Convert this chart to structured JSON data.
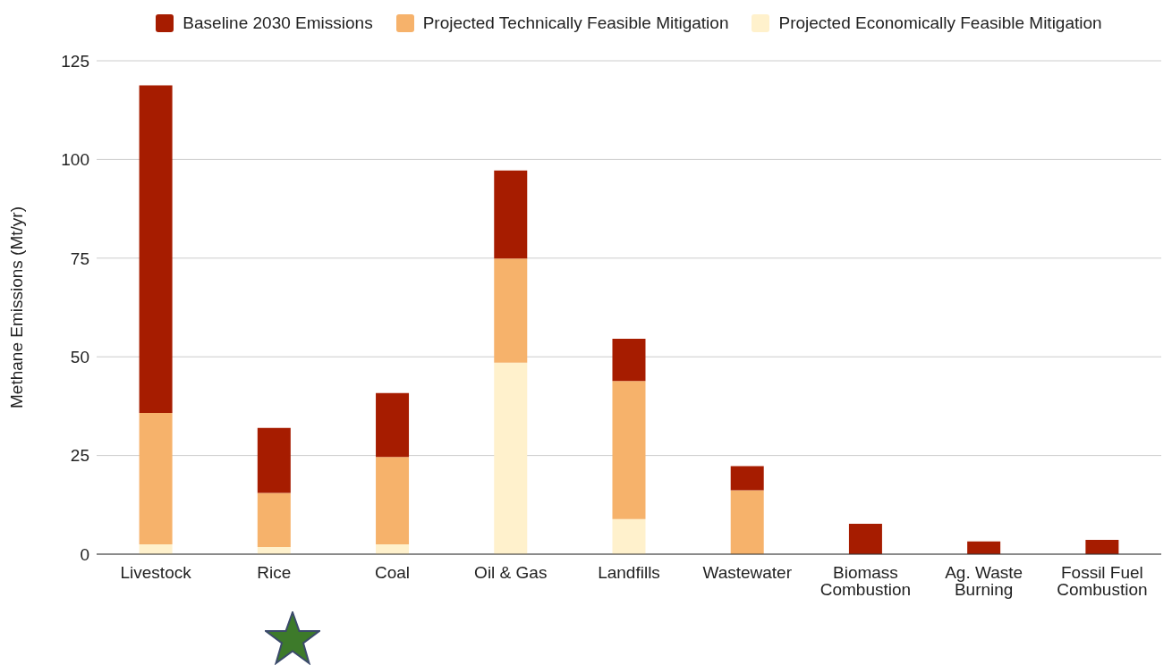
{
  "chart_data": {
    "type": "bar",
    "stacked": true,
    "ylabel": "Methane Emissions (Mt/yr)",
    "categories": [
      "Livestock",
      "Rice",
      "Coal",
      "Oil & Gas",
      "Landfills",
      "Wastewater",
      "Biomass Combustion",
      "Ag. Waste Burning",
      "Fossil Fuel Combustion"
    ],
    "series": [
      {
        "name": "Projected Economically Feasible Mitigation",
        "color": "#fff1cc",
        "values": [
          2.5,
          1.8,
          2.5,
          48.5,
          8.9,
          0,
          0,
          0,
          0
        ]
      },
      {
        "name": "Projected Technically Feasible Mitigation",
        "color": "#f6b26b",
        "values": [
          33.3,
          13.7,
          22.1,
          26.4,
          35,
          16.2,
          0,
          0,
          0
        ]
      },
      {
        "name": "Baseline 2030 Emissions",
        "color": "#a61c00",
        "values": [
          83,
          16.5,
          16.2,
          22.3,
          10.7,
          6.1,
          7.7,
          3.2,
          3.6
        ]
      }
    ],
    "ylim": [
      0,
      125
    ],
    "yticks": [
      0,
      25,
      50,
      75,
      100,
      125
    ],
    "grid": "y",
    "legend": "top"
  }
}
